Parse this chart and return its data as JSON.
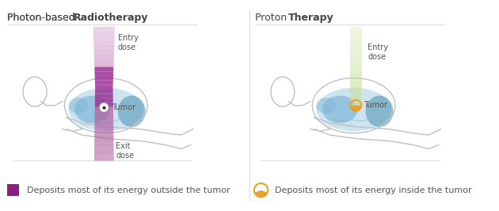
{
  "bg_color": "#f9f9f9",
  "left_title": "Photon-based Radiotherapy",
  "right_title": "Proton Therapy",
  "left_title_bold_word": "Radiotherapy",
  "right_title_bold_word": "Therapy",
  "body_color": "#cccccc",
  "blue_fill": "#a8d8ea",
  "blue_fill2": "#7bbfd4",
  "blue_fill3": "#5aa0c0",
  "beam_purple_top": "#e8c8e8",
  "beam_purple_mid": "#9b3096",
  "beam_purple_bot": "#c07ab0",
  "beam_green": "#c8e6b0",
  "beam_green_mid": "#a8d088",
  "legend_purple": "#8b2080",
  "legend_orange": "#e8a040",
  "text_color": "#555555",
  "tumor_label_color": "#555555",
  "divider_color": "#dddddd",
  "entry_dose_text": "Entry\ndose",
  "exit_dose_text": "Exit\ndose",
  "tumor_text": "Tumor",
  "legend_left_text": "Deposits most of its energy outside the tumor",
  "legend_right_text": "Deposits most of its energy inside the tumor",
  "title_fontsize": 9,
  "label_fontsize": 7,
  "legend_fontsize": 8
}
